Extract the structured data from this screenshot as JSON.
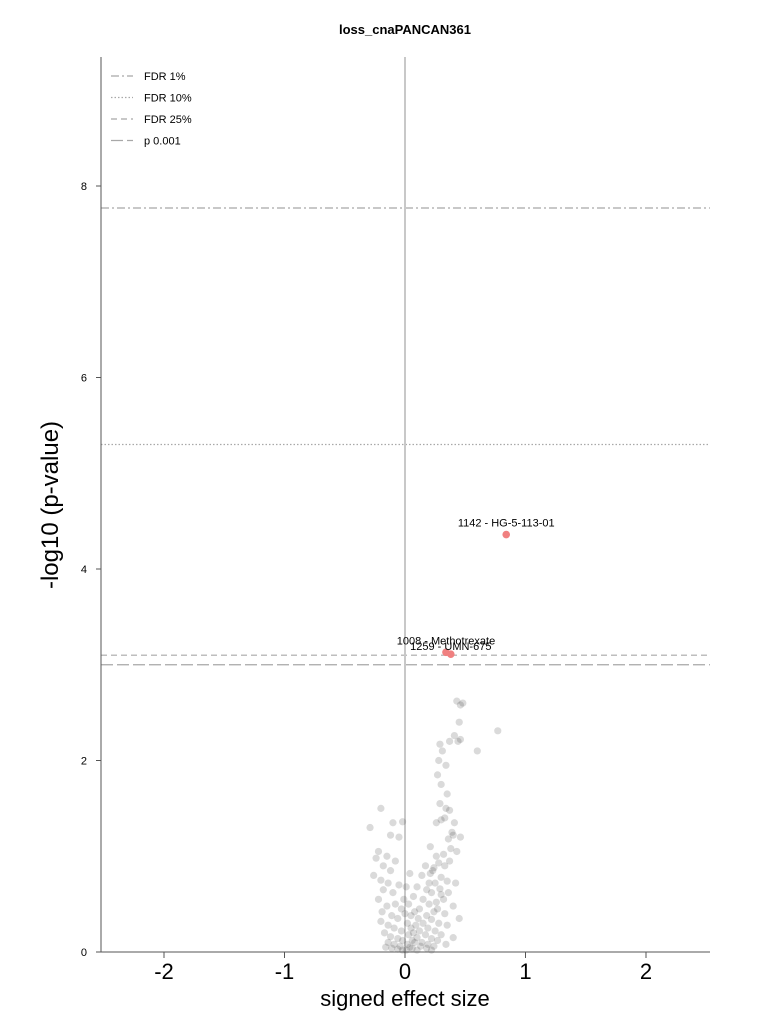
{
  "chart_data": {
    "type": "scatter",
    "title": "loss_cnaPANCAN361",
    "xlabel": "signed effect size",
    "ylabel": "-log10 (p-value)",
    "xlim": [
      -2.5,
      2.5
    ],
    "ylim": [
      0,
      9.3
    ],
    "x_ticks": [
      "-2",
      "-1",
      "0",
      "1",
      "2"
    ],
    "y_ticks": [
      "0",
      "2",
      "4",
      "6",
      "8"
    ],
    "grid": false,
    "legend_position": "top-left",
    "thresholds": [
      {
        "name": "FDR 1%",
        "y": 7.77,
        "style": "dashdot",
        "color": "#a8a8a8"
      },
      {
        "name": "FDR 10%",
        "y": 5.3,
        "style": "dotted",
        "color": "#a8a8a8"
      },
      {
        "name": "FDR 25%",
        "y": 3.1,
        "style": "dashed",
        "color": "#a8a8a8"
      },
      {
        "name": "p 0.001",
        "y": 3.0,
        "style": "longdash",
        "color": "#a8a8a8"
      }
    ],
    "highlighted": [
      {
        "label": "1142 - HG-5-113-01",
        "x": 0.84,
        "y": 4.36
      },
      {
        "label": "1008 - Methotrexate",
        "x": 0.34,
        "y": 3.13
      },
      {
        "label": "1259 - UMN-675",
        "x": 0.38,
        "y": 3.11
      }
    ],
    "highlight_color": "#f08080",
    "points_color": "#333333",
    "points": [
      [
        0.43,
        2.62
      ],
      [
        0.48,
        2.6
      ],
      [
        0.46,
        2.58
      ],
      [
        0.45,
        2.4
      ],
      [
        0.41,
        2.26
      ],
      [
        0.46,
        2.22
      ],
      [
        0.37,
        2.2
      ],
      [
        0.44,
        2.2
      ],
      [
        0.29,
        2.17
      ],
      [
        0.6,
        2.1
      ],
      [
        0.77,
        2.31
      ],
      [
        0.31,
        2.1
      ],
      [
        0.28,
        2.0
      ],
      [
        0.34,
        1.95
      ],
      [
        0.27,
        1.85
      ],
      [
        0.3,
        1.75
      ],
      [
        0.35,
        1.65
      ],
      [
        0.29,
        1.55
      ],
      [
        0.34,
        1.5
      ],
      [
        0.37,
        1.48
      ],
      [
        0.33,
        1.4
      ],
      [
        0.26,
        1.35
      ],
      [
        0.3,
        1.38
      ],
      [
        0.39,
        1.25
      ],
      [
        0.41,
        1.35
      ],
      [
        0.4,
        1.22
      ],
      [
        0.36,
        1.18
      ],
      [
        0.38,
        1.08
      ],
      [
        0.46,
        1.2
      ],
      [
        0.43,
        1.05
      ],
      [
        0.32,
        1.02
      ],
      [
        0.37,
        0.95
      ],
      [
        0.28,
        0.93
      ],
      [
        0.33,
        0.9
      ],
      [
        0.24,
        0.88
      ],
      [
        0.21,
        0.82
      ],
      [
        0.3,
        0.78
      ],
      [
        0.35,
        0.74
      ],
      [
        0.25,
        0.72
      ],
      [
        0.29,
        0.66
      ],
      [
        0.22,
        0.62
      ],
      [
        0.3,
        0.6
      ],
      [
        0.32,
        0.55
      ],
      [
        0.26,
        0.52
      ],
      [
        0.2,
        0.5
      ],
      [
        0.27,
        0.45
      ],
      [
        0.24,
        0.42
      ],
      [
        0.33,
        0.4
      ],
      [
        0.18,
        0.38
      ],
      [
        0.22,
        0.34
      ],
      [
        0.28,
        0.3
      ],
      [
        0.35,
        0.28
      ],
      [
        0.15,
        0.3
      ],
      [
        0.19,
        0.25
      ],
      [
        0.25,
        0.22
      ],
      [
        0.3,
        0.18
      ],
      [
        0.12,
        0.22
      ],
      [
        0.17,
        0.18
      ],
      [
        0.22,
        0.14
      ],
      [
        0.27,
        0.12
      ],
      [
        0.1,
        0.15
      ],
      [
        0.14,
        0.1
      ],
      [
        0.19,
        0.08
      ],
      [
        0.24,
        0.06
      ],
      [
        0.08,
        0.1
      ],
      [
        0.13,
        0.06
      ],
      [
        0.18,
        0.04
      ],
      [
        0.06,
        0.04
      ],
      [
        0.1,
        0.02
      ],
      [
        0.22,
        0.02
      ],
      [
        0.34,
        0.08
      ],
      [
        0.4,
        0.15
      ],
      [
        0.45,
        0.35
      ],
      [
        0.4,
        0.48
      ],
      [
        0.36,
        0.62
      ],
      [
        0.42,
        0.72
      ],
      [
        -0.02,
        1.36
      ],
      [
        -0.2,
        1.5
      ],
      [
        -0.1,
        1.35
      ],
      [
        -0.29,
        1.3
      ],
      [
        -0.12,
        1.22
      ],
      [
        -0.05,
        1.2
      ],
      [
        -0.22,
        1.05
      ],
      [
        -0.15,
        1.0
      ],
      [
        -0.24,
        0.98
      ],
      [
        -0.08,
        0.95
      ],
      [
        -0.18,
        0.9
      ],
      [
        -0.12,
        0.85
      ],
      [
        -0.26,
        0.8
      ],
      [
        -0.2,
        0.75
      ],
      [
        -0.14,
        0.72
      ],
      [
        -0.05,
        0.7
      ],
      [
        -0.18,
        0.65
      ],
      [
        -0.1,
        0.62
      ],
      [
        -0.22,
        0.55
      ],
      [
        -0.08,
        0.5
      ],
      [
        -0.15,
        0.48
      ],
      [
        -0.03,
        0.45
      ],
      [
        -0.19,
        0.42
      ],
      [
        -0.11,
        0.38
      ],
      [
        -0.06,
        0.35
      ],
      [
        -0.2,
        0.32
      ],
      [
        -0.14,
        0.28
      ],
      [
        -0.09,
        0.25
      ],
      [
        -0.03,
        0.22
      ],
      [
        -0.17,
        0.2
      ],
      [
        -0.12,
        0.16
      ],
      [
        -0.06,
        0.14
      ],
      [
        -0.02,
        0.12
      ],
      [
        -0.14,
        0.1
      ],
      [
        -0.09,
        0.08
      ],
      [
        -0.04,
        0.06
      ],
      [
        -0.11,
        0.04
      ],
      [
        -0.06,
        0.03
      ],
      [
        -0.02,
        0.02
      ],
      [
        -0.16,
        0.05
      ],
      [
        0.02,
        0.3
      ],
      [
        0.05,
        0.25
      ],
      [
        0.03,
        0.18
      ],
      [
        0.06,
        0.12
      ],
      [
        0.02,
        0.08
      ],
      [
        0.04,
        0.05
      ],
      [
        0.01,
        0.02
      ],
      [
        0.07,
        0.2
      ],
      [
        0.09,
        0.28
      ],
      [
        0.05,
        0.38
      ],
      [
        0.11,
        0.35
      ],
      [
        0.08,
        0.42
      ],
      [
        0.12,
        0.45
      ],
      [
        0.03,
        0.5
      ],
      [
        0.15,
        0.55
      ],
      [
        0.07,
        0.58
      ],
      [
        0.18,
        0.65
      ],
      [
        0.1,
        0.68
      ],
      [
        0.2,
        0.72
      ],
      [
        0.14,
        0.8
      ],
      [
        0.23,
        0.85
      ],
      [
        0.17,
        0.9
      ],
      [
        0.26,
        1.0
      ],
      [
        0.21,
        1.1
      ],
      [
        0.0,
        0.4
      ],
      [
        -0.01,
        0.55
      ],
      [
        0.01,
        0.68
      ],
      [
        0.04,
        0.82
      ]
    ]
  }
}
